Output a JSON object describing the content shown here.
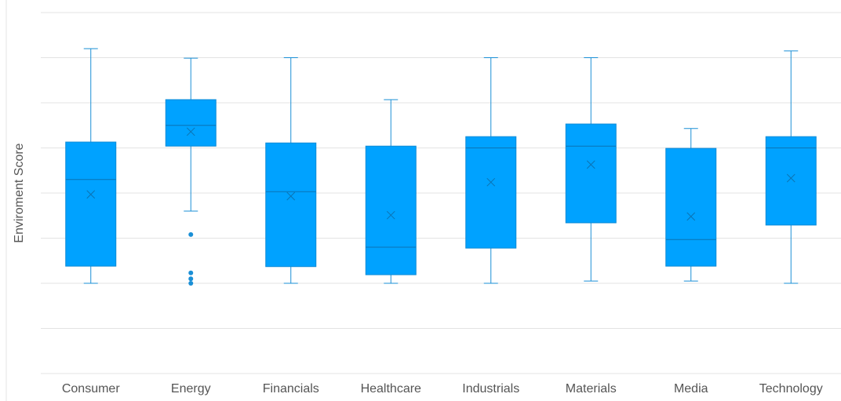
{
  "chart_data": {
    "type": "box",
    "y_label": "Enviroment Score",
    "categories": [
      "Consumer",
      "Energy",
      "Financials",
      "Healthcare",
      "Industrials",
      "Materials",
      "Media",
      "Technology"
    ],
    "color": "#00a2ff",
    "ylim": [
      0,
      8
    ],
    "yticks": [
      0,
      1,
      2,
      3,
      4,
      5,
      6,
      7,
      8
    ],
    "grid": true,
    "boxes": [
      {
        "min": 2.0,
        "q1": 2.38,
        "median": 4.3,
        "q3": 5.13,
        "max": 7.2,
        "mean": 3.97
      },
      {
        "min": 3.6,
        "q1": 5.04,
        "median": 5.5,
        "q3": 6.07,
        "max": 6.99,
        "mean": 5.36,
        "outliers": [
          3.08,
          2.23,
          2.1,
          2.0
        ]
      },
      {
        "min": 2.0,
        "q1": 2.37,
        "median": 4.03,
        "q3": 5.11,
        "max": 7.0,
        "mean": 3.93
      },
      {
        "min": 2.0,
        "q1": 2.19,
        "median": 2.8,
        "q3": 5.04,
        "max": 6.07,
        "mean": 3.51
      },
      {
        "min": 2.0,
        "q1": 2.78,
        "median": 5.0,
        "q3": 5.25,
        "max": 7.0,
        "mean": 4.24
      },
      {
        "min": 2.05,
        "q1": 3.34,
        "median": 5.04,
        "q3": 5.53,
        "max": 7.0,
        "mean": 4.63
      },
      {
        "min": 2.05,
        "q1": 2.38,
        "median": 2.97,
        "q3": 4.99,
        "max": 5.43,
        "mean": 3.48
      },
      {
        "min": 2.0,
        "q1": 3.29,
        "median": 5.0,
        "q3": 5.25,
        "max": 7.15,
        "mean": 4.33
      }
    ]
  }
}
